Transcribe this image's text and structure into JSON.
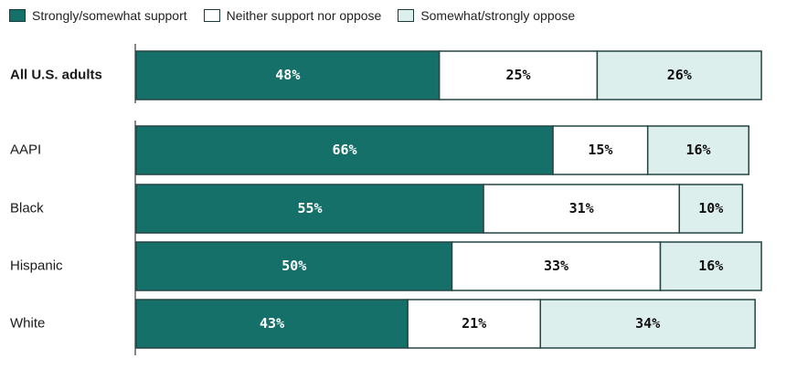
{
  "chart_data": {
    "type": "bar",
    "orientation": "horizontal",
    "stacked": true,
    "legend_position": "top-left",
    "grid": false,
    "xlim": [
      0,
      100
    ],
    "series": [
      {
        "name": "Strongly/somewhat support",
        "color": "#15706a",
        "text_color": "#ffffff"
      },
      {
        "name": "Neither support nor oppose",
        "color": "#ffffff",
        "text_color": "#111111"
      },
      {
        "name": "Somewhat/strongly oppose",
        "color": "#dcefed",
        "text_color": "#111111"
      }
    ],
    "groups": [
      {
        "rows": [
          {
            "label": "All U.S. adults",
            "bold": true,
            "values": [
              48,
              25,
              26
            ],
            "display": [
              "48%",
              "25%",
              "26%"
            ]
          }
        ]
      },
      {
        "rows": [
          {
            "label": "AAPI",
            "bold": false,
            "values": [
              66,
              15,
              16
            ],
            "display": [
              "66%",
              "15%",
              "16%"
            ]
          },
          {
            "label": "Black",
            "bold": false,
            "values": [
              55,
              31,
              10
            ],
            "display": [
              "55%",
              "31%",
              "10%"
            ]
          },
          {
            "label": "Hispanic",
            "bold": false,
            "values": [
              50,
              33,
              16
            ],
            "display": [
              "50%",
              "33%",
              "16%"
            ]
          },
          {
            "label": "White",
            "bold": false,
            "values": [
              43,
              21,
              34
            ],
            "display": [
              "43%",
              "21%",
              "34%"
            ]
          }
        ]
      }
    ]
  }
}
